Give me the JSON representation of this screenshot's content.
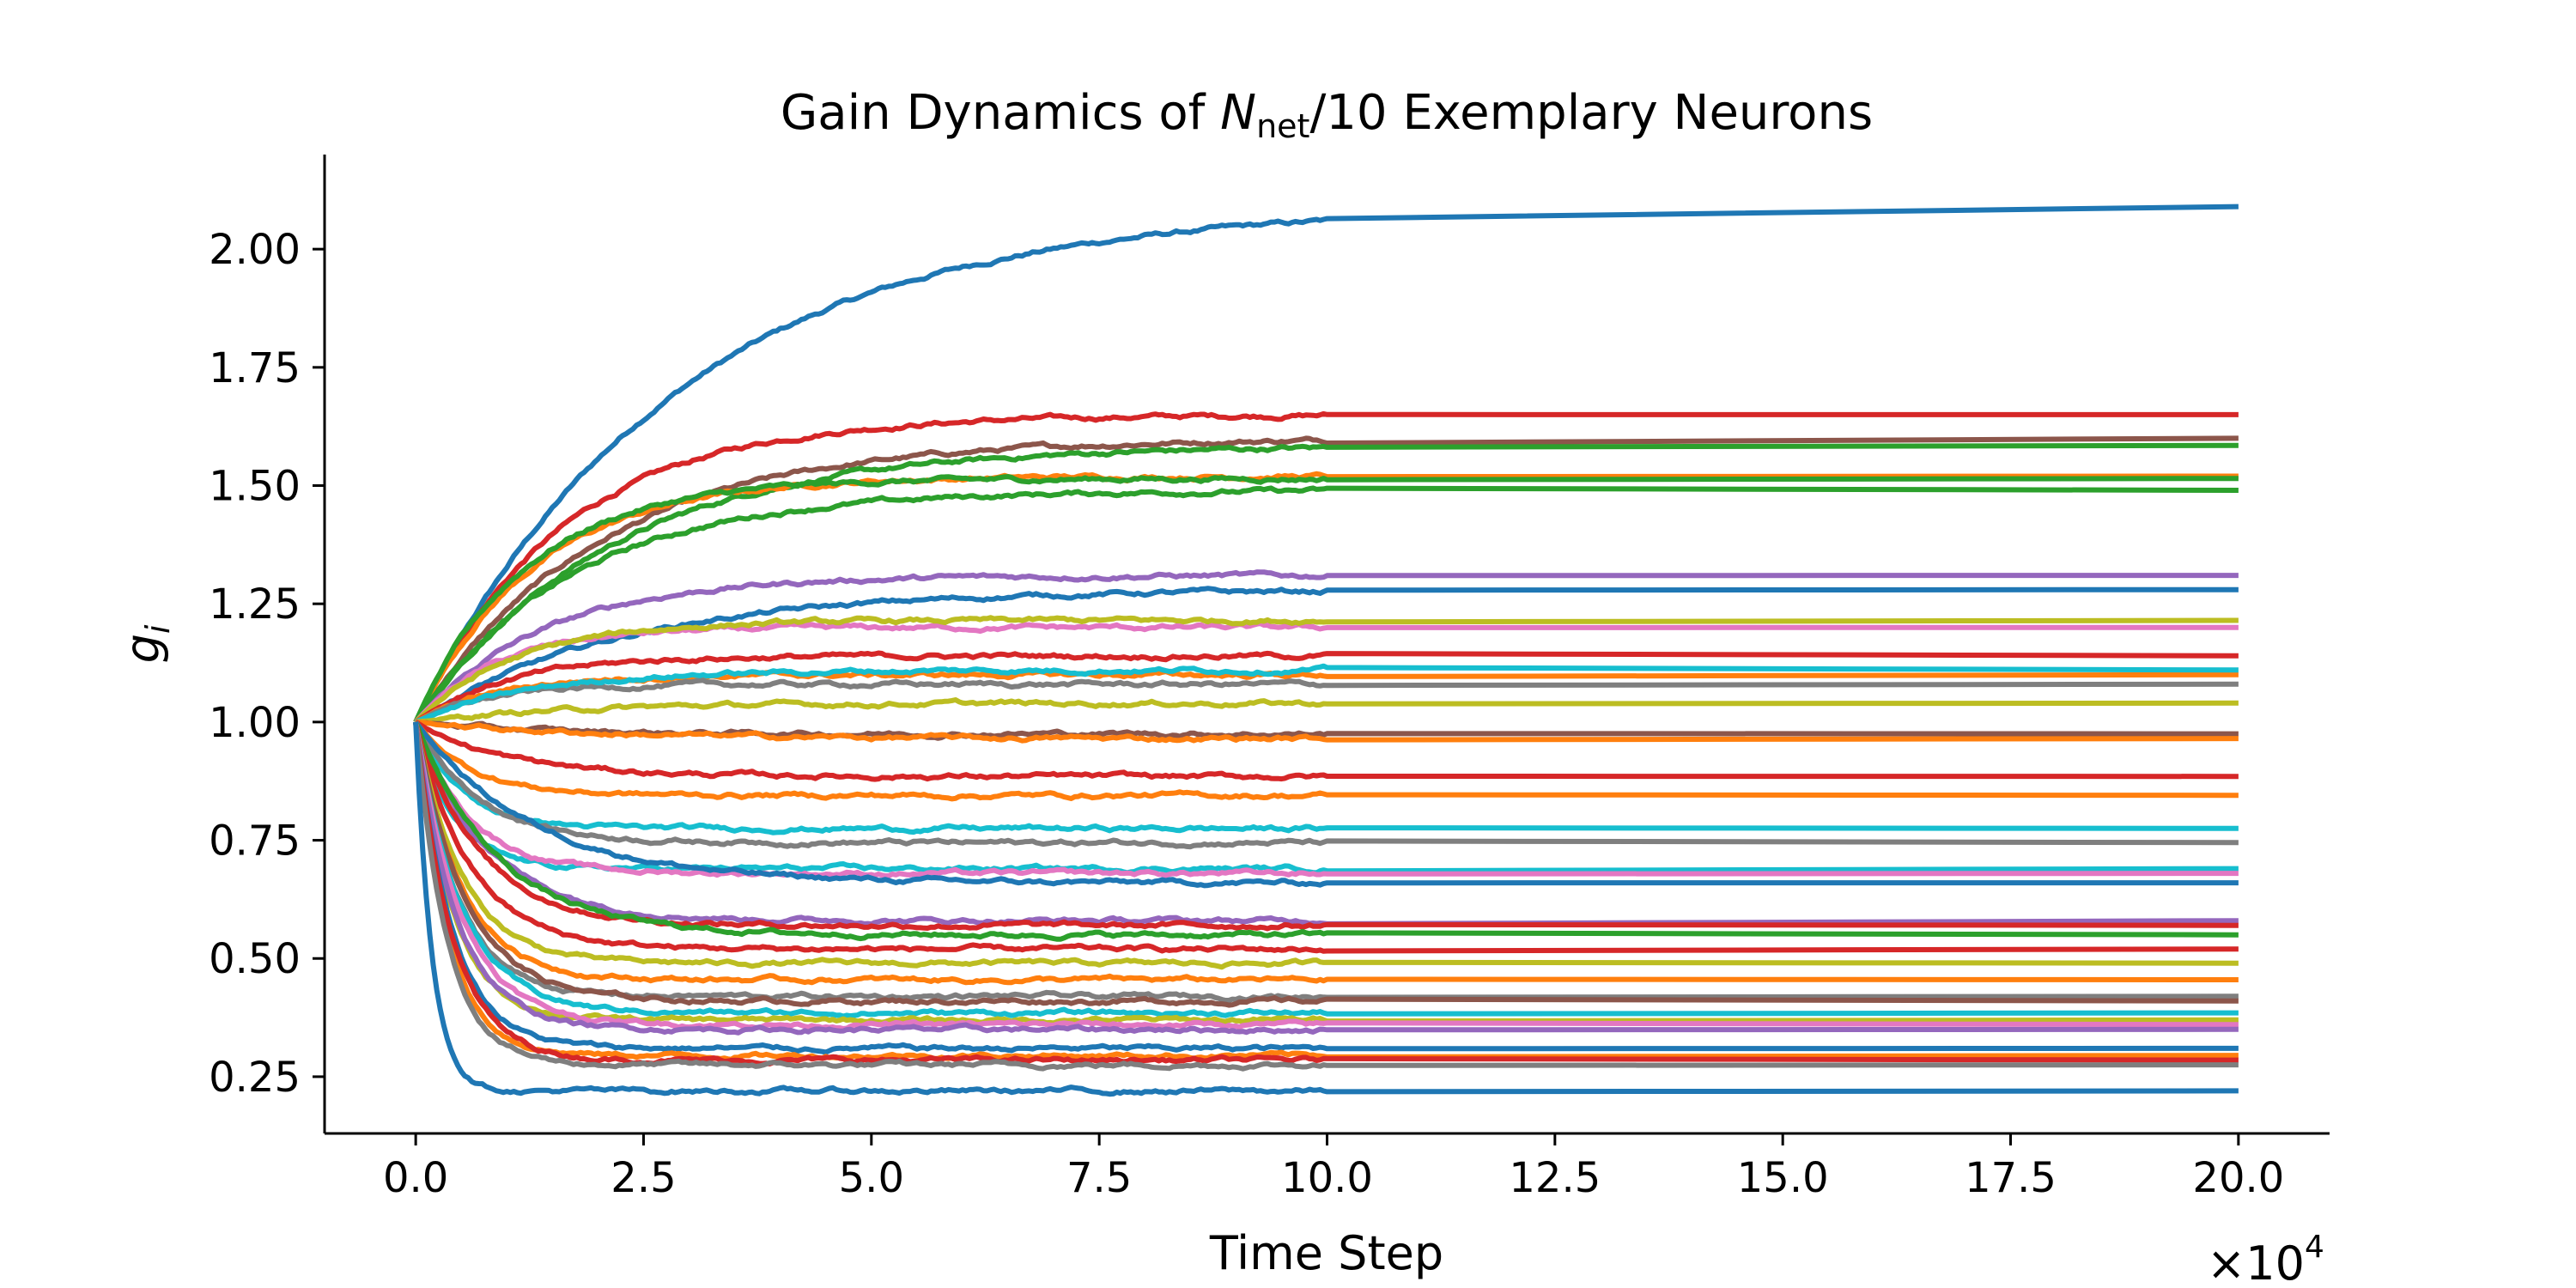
{
  "chart_data": {
    "type": "line",
    "title": {
      "prefix": "Gain Dynamics of ",
      "symbol": "N",
      "subscript": "net",
      "suffix": "/10 Exemplary Neurons"
    },
    "xlabel": "Time Step",
    "ylabel": {
      "symbol": "g",
      "subscript": "i"
    },
    "x_multiplier": {
      "prefix": "×10",
      "exponent": "4"
    },
    "xlim": [
      -1.0,
      21.0
    ],
    "ylim": [
      0.13,
      2.2
    ],
    "xticks": [
      0.0,
      2.5,
      5.0,
      7.5,
      10.0,
      12.5,
      15.0,
      17.5,
      20.0
    ],
    "xtick_labels": [
      "0.0",
      "2.5",
      "5.0",
      "7.5",
      "10.0",
      "12.5",
      "15.0",
      "17.5",
      "20.0"
    ],
    "yticks": [
      0.25,
      0.5,
      0.75,
      1.0,
      1.25,
      1.5,
      1.75,
      2.0
    ],
    "ytick_labels": [
      "0.25",
      "0.50",
      "0.75",
      "1.00",
      "1.25",
      "1.50",
      "1.75",
      "2.00"
    ],
    "grid": false,
    "legend": "none",
    "x_initial": 0.0,
    "x_switch": 10.0,
    "x_end": 20.0,
    "series": [
      {
        "color": "#1f77b4",
        "initial": 1.0,
        "final": 2.09,
        "tau": 2.8
      },
      {
        "color": "#d62728",
        "initial": 1.0,
        "final": 1.65,
        "tau": 1.6
      },
      {
        "color": "#8c564b",
        "initial": 1.0,
        "final": 1.6,
        "tau": 2.0
      },
      {
        "color": "#2ca02c",
        "initial": 1.0,
        "final": 1.585,
        "tau": 2.1
      },
      {
        "color": "#ff7f0e",
        "initial": 1.0,
        "final": 1.52,
        "tau": 1.3
      },
      {
        "color": "#2ca02c",
        "initial": 1.0,
        "final": 1.515,
        "tau": 1.2
      },
      {
        "color": "#2ca02c",
        "initial": 1.0,
        "final": 1.49,
        "tau": 1.7
      },
      {
        "color": "#9467bd",
        "initial": 1.0,
        "final": 1.31,
        "tau": 1.4
      },
      {
        "color": "#1f77b4",
        "initial": 1.0,
        "final": 1.28,
        "tau": 2.2
      },
      {
        "color": "#e377c2",
        "initial": 1.0,
        "final": 1.2,
        "tau": 0.9
      },
      {
        "color": "#bcbd22",
        "initial": 1.0,
        "final": 1.215,
        "tau": 1.1
      },
      {
        "color": "#d62728",
        "initial": 1.0,
        "final": 1.14,
        "tau": 1.0
      },
      {
        "color": "#ff7f0e",
        "initial": 1.0,
        "final": 1.1,
        "tau": 0.9
      },
      {
        "color": "#7f7f7f",
        "initial": 1.0,
        "final": 1.08,
        "tau": 0.8
      },
      {
        "color": "#17becf",
        "initial": 1.0,
        "final": 1.11,
        "tau": 1.3
      },
      {
        "color": "#bcbd22",
        "initial": 1.0,
        "final": 1.04,
        "tau": 1.6
      },
      {
        "color": "#8c564b",
        "initial": 1.0,
        "final": 0.975,
        "tau": 1.2
      },
      {
        "color": "#ff7f0e",
        "initial": 1.0,
        "final": 0.965,
        "tau": 1.8
      },
      {
        "color": "#d62728",
        "initial": 1.0,
        "final": 0.885,
        "tau": 1.0
      },
      {
        "color": "#ff7f0e",
        "initial": 1.0,
        "final": 0.845,
        "tau": 0.6
      },
      {
        "color": "#17becf",
        "initial": 1.0,
        "final": 0.775,
        "tau": 0.5
      },
      {
        "color": "#7f7f7f",
        "initial": 1.0,
        "final": 0.745,
        "tau": 0.7
      },
      {
        "color": "#17becf",
        "initial": 1.0,
        "final": 0.69,
        "tau": 0.4
      },
      {
        "color": "#e377c2",
        "initial": 1.0,
        "final": 0.68,
        "tau": 0.6
      },
      {
        "color": "#1f77b4",
        "initial": 1.0,
        "final": 0.66,
        "tau": 1.3
      },
      {
        "color": "#9467bd",
        "initial": 1.0,
        "final": 0.58,
        "tau": 0.8
      },
      {
        "color": "#d62728",
        "initial": 1.0,
        "final": 0.57,
        "tau": 0.7
      },
      {
        "color": "#2ca02c",
        "initial": 1.0,
        "final": 0.55,
        "tau": 0.9
      },
      {
        "color": "#d62728",
        "initial": 1.0,
        "final": 0.52,
        "tau": 0.6
      },
      {
        "color": "#bcbd22",
        "initial": 1.0,
        "final": 0.49,
        "tau": 0.5
      },
      {
        "color": "#ff7f0e",
        "initial": 1.0,
        "final": 0.455,
        "tau": 0.5
      },
      {
        "color": "#7f7f7f",
        "initial": 1.0,
        "final": 0.42,
        "tau": 0.45
      },
      {
        "color": "#8c564b",
        "initial": 1.0,
        "final": 0.41,
        "tau": 0.55
      },
      {
        "color": "#17becf",
        "initial": 1.0,
        "final": 0.385,
        "tau": 0.5
      },
      {
        "color": "#bcbd22",
        "initial": 1.0,
        "final": 0.37,
        "tau": 0.4
      },
      {
        "color": "#e377c2",
        "initial": 1.0,
        "final": 0.36,
        "tau": 0.5
      },
      {
        "color": "#9467bd",
        "initial": 1.0,
        "final": 0.35,
        "tau": 0.45
      },
      {
        "color": "#1f77b4",
        "initial": 1.0,
        "final": 0.31,
        "tau": 0.4
      },
      {
        "color": "#ff7f0e",
        "initial": 1.0,
        "final": 0.295,
        "tau": 0.35
      },
      {
        "color": "#d62728",
        "initial": 1.0,
        "final": 0.285,
        "tau": 0.4
      },
      {
        "color": "#7f7f7f",
        "initial": 1.0,
        "final": 0.275,
        "tau": 0.35
      },
      {
        "color": "#1f77b4",
        "initial": 1.0,
        "final": 0.22,
        "tau": 0.18
      }
    ]
  }
}
